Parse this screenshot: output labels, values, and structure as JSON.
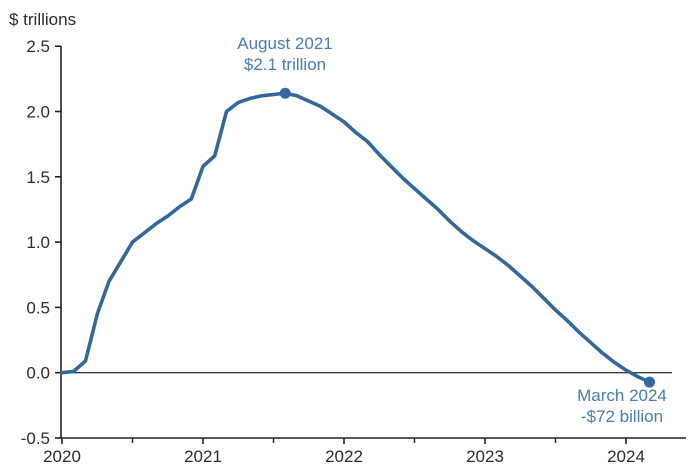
{
  "chart_data": {
    "type": "line",
    "units_label": "$ trillions",
    "xlabel": "",
    "ylabel": "$ trillions",
    "xlim": [
      2020,
      2024.43
    ],
    "ylim": [
      -0.5,
      2.5
    ],
    "grid": false,
    "legend": false,
    "y_ticks": [
      {
        "value": 2.5,
        "label": "2.5"
      },
      {
        "value": 2.0,
        "label": "2.0"
      },
      {
        "value": 1.5,
        "label": "1.5"
      },
      {
        "value": 1.0,
        "label": "1.0"
      },
      {
        "value": 0.5,
        "label": "0.5"
      },
      {
        "value": 0.0,
        "label": "0.0"
      },
      {
        "value": -0.5,
        "label": "-0.5"
      }
    ],
    "x_major_ticks": [
      {
        "value": 2020,
        "label": "2020"
      },
      {
        "value": 2021,
        "label": "2021"
      },
      {
        "value": 2022,
        "label": "2022"
      },
      {
        "value": 2023,
        "label": "2023"
      },
      {
        "value": 2024,
        "label": "2024"
      }
    ],
    "x_minor_ticks": [
      2020.5,
      2021.5,
      2022.5,
      2023.5
    ],
    "series": [
      {
        "start_month": "2020-01",
        "frequency": "monthly",
        "values": [
          0.0,
          0.01,
          0.09,
          0.45,
          0.7,
          0.85,
          1.0,
          1.07,
          1.14,
          1.2,
          1.27,
          1.33,
          1.58,
          1.66,
          2.0,
          2.07,
          2.1,
          2.12,
          2.13,
          2.14,
          2.12,
          2.08,
          2.04,
          1.98,
          1.92,
          1.84,
          1.77,
          1.67,
          1.58,
          1.49,
          1.41,
          1.33,
          1.25,
          1.16,
          1.08,
          1.01,
          0.95,
          0.89,
          0.82,
          0.74,
          0.66,
          0.57,
          0.48,
          0.4,
          0.31,
          0.23,
          0.15,
          0.08,
          0.02,
          -0.03,
          -0.072
        ]
      }
    ],
    "markers": [
      {
        "month": "2021-08",
        "value": 2.14
      },
      {
        "month": "2024-03",
        "value": -0.072
      }
    ],
    "annotations": [
      {
        "line1": "August 2021",
        "line2": "$2.1 trillion"
      },
      {
        "line1": "March 2024",
        "line2": "-$72 billion"
      }
    ],
    "colors": {
      "line": "#32689b",
      "marker": "#32689b",
      "annotation_text": "#4a7cb0",
      "axis": "#222222",
      "zero_line": "#3c3c3c",
      "tick_label": "#2d2d2d"
    }
  }
}
